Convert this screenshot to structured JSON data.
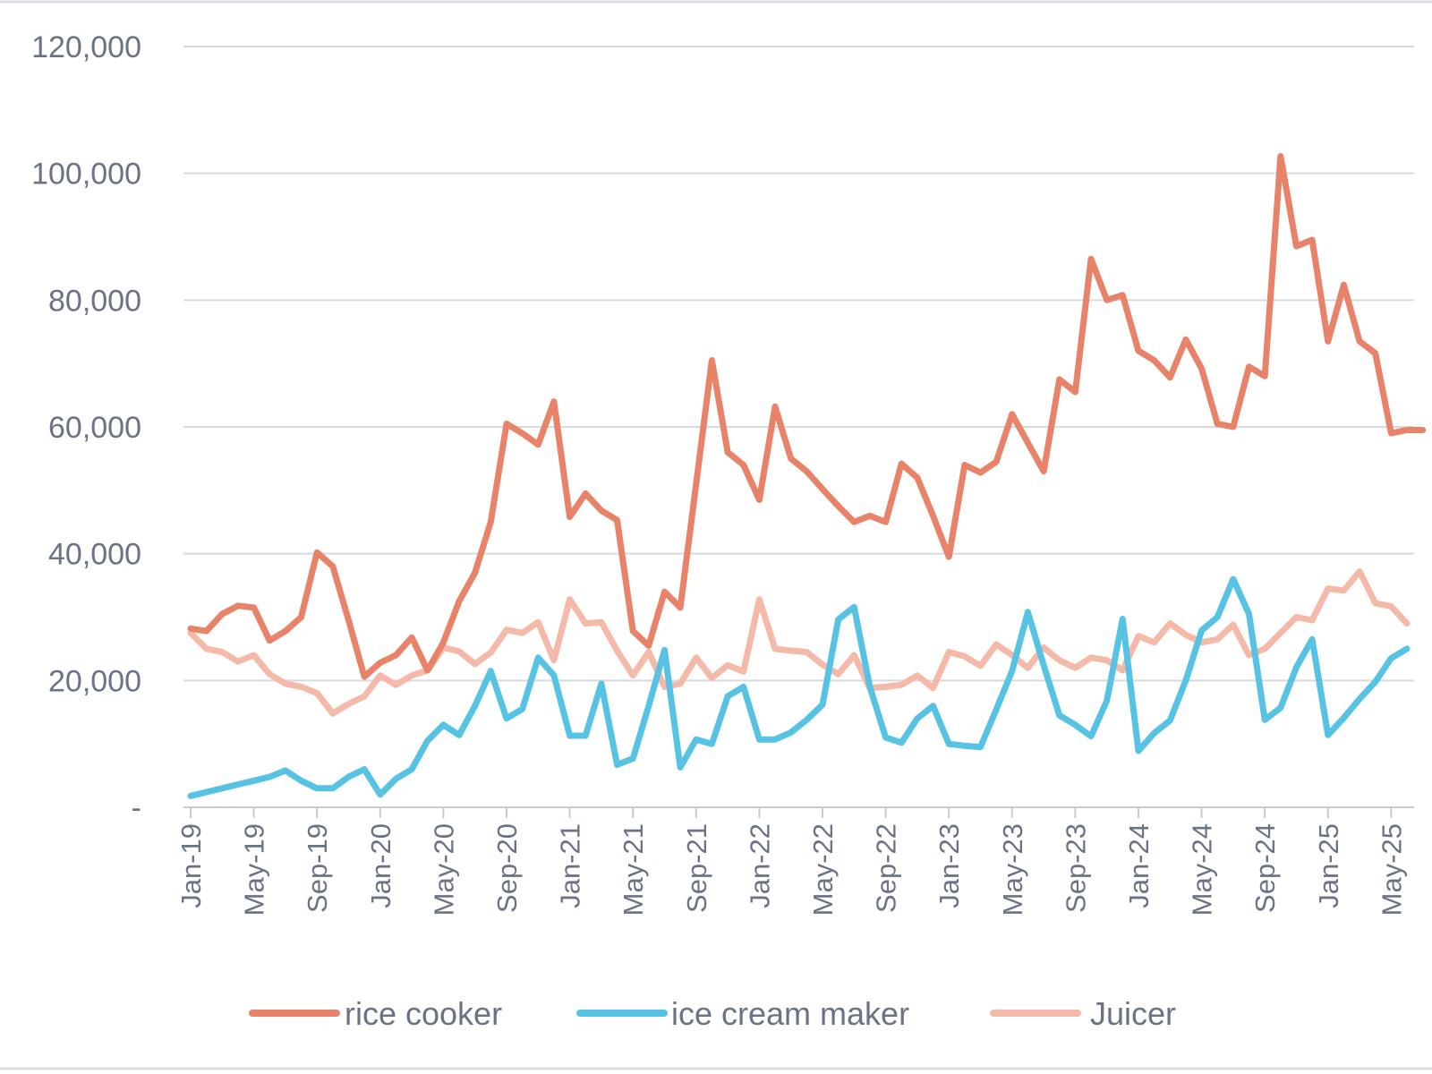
{
  "chart_data": {
    "type": "line",
    "title": "",
    "xlabel": "",
    "ylabel": "",
    "ylim": [
      0,
      120000
    ],
    "yticks": [
      0,
      20000,
      40000,
      60000,
      80000,
      100000,
      120000
    ],
    "ytick_labels": [
      "-",
      "20,000",
      "40,000",
      "60,000",
      "80,000",
      "100,000",
      "120,000"
    ],
    "xtick_labels": [
      "Jan-19",
      "May-19",
      "Sep-19",
      "Jan-20",
      "May-20",
      "Sep-20",
      "Jan-21",
      "May-21",
      "Sep-21",
      "Jan-22",
      "May-22",
      "Sep-22",
      "Jan-23",
      "May-23",
      "Sep-23",
      "Jan-24",
      "May-24",
      "Sep-24",
      "Jan-25",
      "May-25"
    ],
    "grid": true,
    "legend_position": "bottom",
    "x_start": "Jan-19",
    "x_step": "1 month",
    "series": [
      {
        "name": "rice cooker",
        "color": "#e8836a",
        "values": [
          28200,
          27800,
          30500,
          31800,
          31500,
          26300,
          27800,
          30000,
          40200,
          38000,
          29500,
          20600,
          22800,
          24000,
          26800,
          21600,
          26000,
          32500,
          37000,
          45000,
          60500,
          59000,
          57200,
          64000,
          45800,
          49500,
          46800,
          45300,
          27800,
          25500,
          34000,
          31500,
          51000,
          70500,
          56000,
          54000,
          48500,
          63200,
          55000,
          53000,
          50200,
          47500,
          45000,
          46000,
          45000,
          54200,
          52000,
          46000,
          39500,
          54000,
          52800,
          54500,
          62000,
          57500,
          53000,
          67500,
          65500,
          86500,
          80000,
          80800,
          72000,
          70500,
          67800,
          73800,
          69200,
          60500,
          60000,
          69500,
          68000,
          102700,
          88500,
          89500,
          73500,
          82400,
          73500,
          71600,
          59000,
          59500,
          59500
        ]
      },
      {
        "name": "ice cream maker",
        "color": "#56c3e4",
        "values": [
          1800,
          2400,
          3000,
          3600,
          4200,
          4800,
          5800,
          4200,
          3000,
          3000,
          4800,
          6000,
          2000,
          4500,
          6000,
          10500,
          13000,
          11400,
          16000,
          21500,
          14000,
          15500,
          23600,
          20800,
          11300,
          11300,
          19500,
          6700,
          7700,
          16000,
          24800,
          6300,
          10700,
          10000,
          17500,
          19000,
          10700,
          10700,
          11800,
          13800,
          16200,
          29600,
          31600,
          19000,
          11000,
          10200,
          14000,
          16000,
          10000,
          9700,
          9500,
          15400,
          21500,
          30800,
          22400,
          14500,
          13000,
          11200,
          16800,
          29700,
          8900,
          11700,
          13700,
          20000,
          27900,
          30000,
          36000,
          30500,
          13800,
          15700,
          22100,
          26500,
          11400,
          14100,
          17100,
          19800,
          23500,
          25000
        ]
      },
      {
        "name": "Juicer",
        "color": "#f4b9a8",
        "values": [
          27500,
          25000,
          24500,
          23000,
          24000,
          21000,
          19500,
          19000,
          18000,
          14800,
          16300,
          17500,
          20800,
          19300,
          20800,
          21600,
          25200,
          24600,
          22600,
          24400,
          28000,
          27500,
          29200,
          23200,
          32800,
          29000,
          29200,
          24700,
          20800,
          24500,
          19000,
          19500,
          23600,
          20400,
          22400,
          21400,
          32800,
          25000,
          24700,
          24500,
          22500,
          21000,
          24000,
          18800,
          19000,
          19300,
          20800,
          18800,
          24500,
          23800,
          22300,
          25700,
          24000,
          22000,
          25200,
          23200,
          22000,
          23600,
          23200,
          21600,
          27000,
          26000,
          29000,
          27200,
          26000,
          26500,
          28800,
          24000,
          25000,
          27500,
          30000,
          29500,
          34500,
          34200,
          37200,
          32200,
          31700,
          29000
        ]
      }
    ]
  }
}
